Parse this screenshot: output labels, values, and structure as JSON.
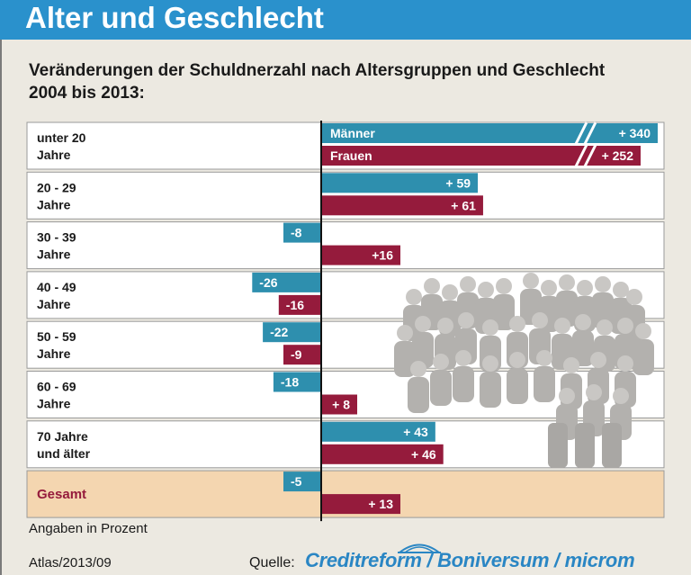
{
  "header": {
    "title": "Alter und Geschlecht"
  },
  "subtitle": {
    "line1": "Veränderungen der Schuldnerzahl nach Altersgruppen und Geschlecht",
    "line2": "2004 bis 2013:"
  },
  "footer": {
    "note": "Angaben in Prozent",
    "atlas": "Atlas/2013/09",
    "quelle": "Quelle:",
    "source": "Creditreform / Boniversum / microm"
  },
  "colors": {
    "maenner": "#2e8fae",
    "frauen": "#951b3c",
    "header": "#2a91cc",
    "gesamt_bg": "#f4d6b0"
  },
  "chart_data": {
    "type": "bar",
    "orientation": "horizontal",
    "unit": "Angaben in Prozent",
    "legend": [
      "Männer",
      "Frauen"
    ],
    "categories": [
      [
        "unter 20",
        "Jahre"
      ],
      [
        "20 - 29",
        "Jahre"
      ],
      [
        "30 - 39",
        "Jahre"
      ],
      [
        "40 - 49",
        "Jahre"
      ],
      [
        "50 - 59",
        "Jahre"
      ],
      [
        "60 - 69",
        "Jahre"
      ],
      [
        "70 Jahre",
        "und älter"
      ],
      [
        "Gesamt",
        ""
      ]
    ],
    "series": [
      {
        "name": "Männer",
        "values": [
          340,
          59,
          -8,
          -26,
          -22,
          -18,
          43,
          -5
        ],
        "labels": [
          "+ 340",
          "+ 59",
          "-8",
          "-26",
          "-22",
          "-18",
          "+ 43",
          "-5"
        ]
      },
      {
        "name": "Frauen",
        "values": [
          252,
          61,
          16,
          -16,
          -9,
          8,
          46,
          13
        ],
        "labels": [
          "+ 252",
          "+ 61",
          "+16",
          "-16",
          "-9",
          "+ 8",
          "+ 46",
          "+ 13"
        ]
      }
    ],
    "axis_break": true,
    "note": "Angaben in Prozent"
  }
}
